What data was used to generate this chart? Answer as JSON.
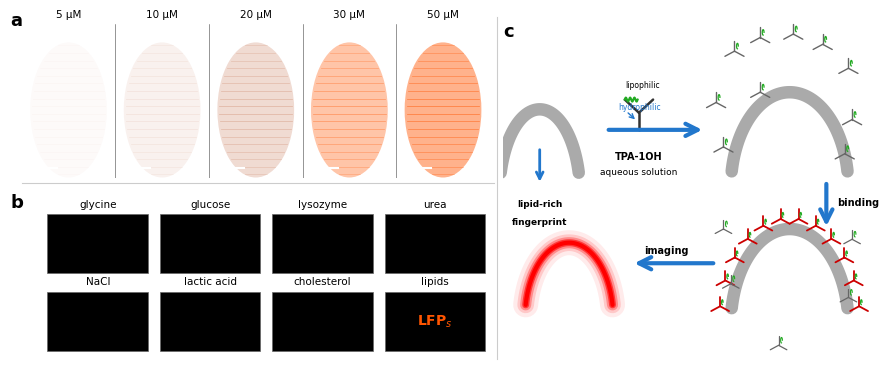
{
  "panel_a_labels": [
    "5 μM",
    "10 μM",
    "20 μM",
    "30 μM",
    "50 μM"
  ],
  "panel_a_intensities": [
    0.04,
    0.12,
    0.32,
    0.62,
    0.82
  ],
  "panel_b_row1_labels": [
    "glycine",
    "glucose",
    "lysozyme",
    "urea"
  ],
  "panel_b_row2_labels": [
    "NaCl",
    "lactic acid",
    "cholesterol",
    "lipids"
  ],
  "bg_color": "#ffffff",
  "fingerprint_bg": "#000000",
  "orange_color": "#aa3300",
  "bright_orange": "#ff5500",
  "label_a": "a",
  "label_b": "b",
  "label_c": "c",
  "blue_arrow_color": "#2277cc",
  "diagram_gray": "#999999",
  "diagram_dark_gray": "#555555",
  "diagram_green": "#22aa22",
  "diagram_red": "#cc0000",
  "arch_gray": "#aaaaaa",
  "arch_lw": 9
}
